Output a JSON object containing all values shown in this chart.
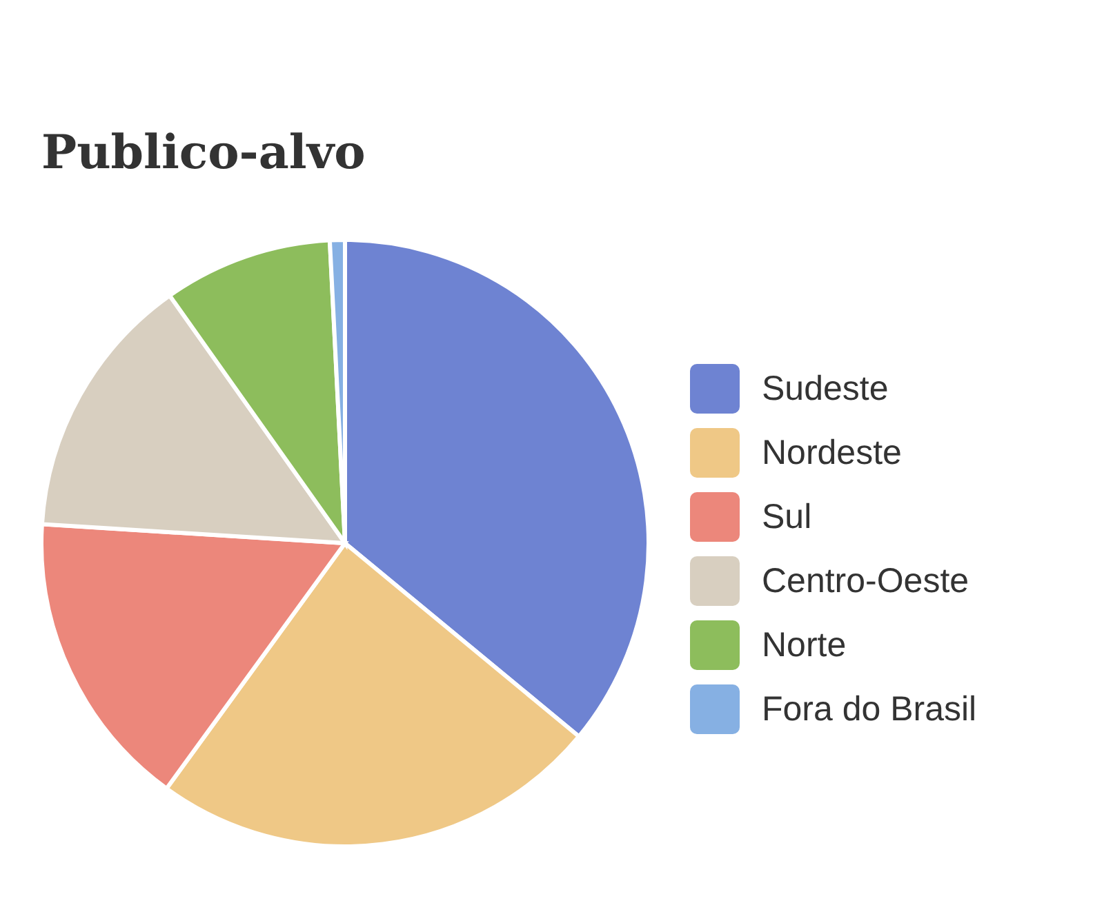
{
  "chart_data": {
    "type": "pie",
    "title": "Publico-alvo",
    "categories": [
      "Sudeste",
      "Nordeste",
      "Sul",
      "Centro-Oeste",
      "Norte",
      "Fora do Brasil"
    ],
    "values": [
      36,
      24,
      16,
      14.2,
      9,
      0.8
    ],
    "colors": [
      "#6e83d2",
      "#efc886",
      "#ec877b",
      "#d8cfc0",
      "#8dbd5c",
      "#86b0e3"
    ],
    "legend": "right"
  }
}
